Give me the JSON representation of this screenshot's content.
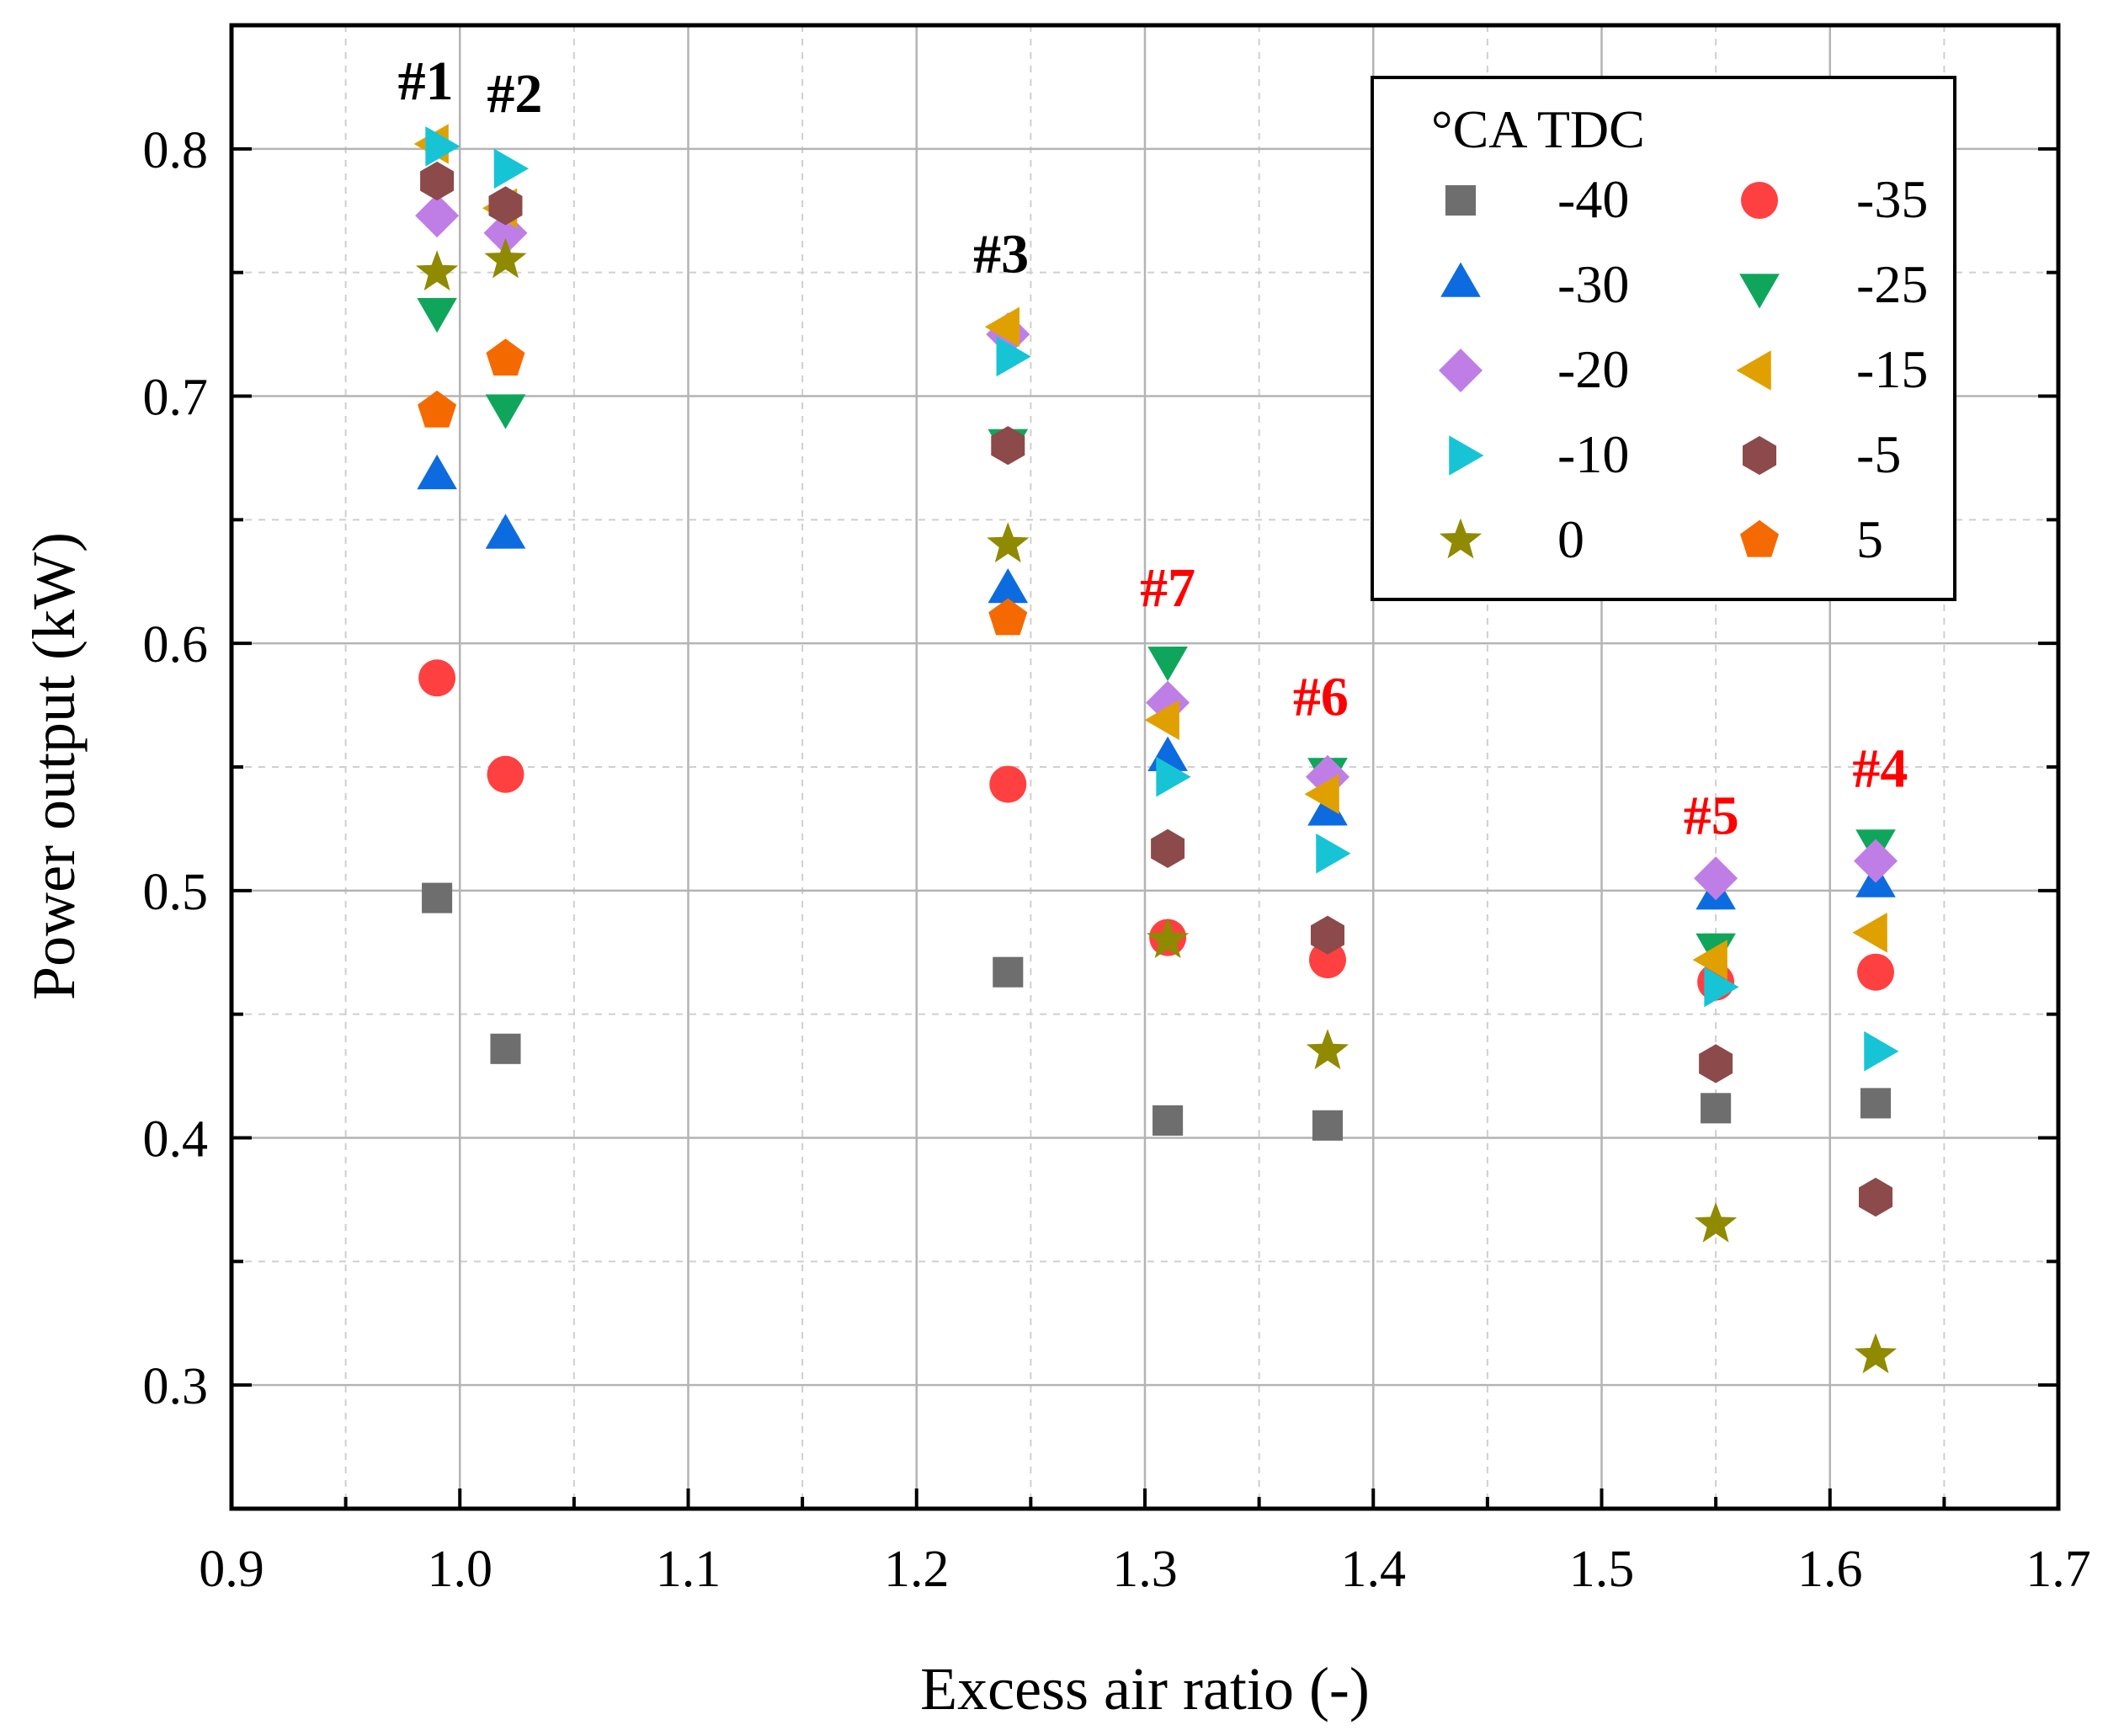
{
  "chart_data": {
    "type": "scatter",
    "title": "",
    "xlabel": "Excess air ratio (-)",
    "ylabel": "Power output (kW)",
    "xlim": [
      0.9,
      1.7
    ],
    "ylim": [
      0.25,
      0.85
    ],
    "xticks": [
      0.9,
      1.0,
      1.1,
      1.2,
      1.3,
      1.4,
      1.5,
      1.6,
      1.7
    ],
    "xtick_labels": [
      "0.9",
      "1.0",
      "1.1",
      "1.2",
      "1.3",
      "1.4",
      "1.5",
      "1.6",
      "1.7"
    ],
    "yticks": [
      0.3,
      0.4,
      0.5,
      0.6,
      0.7,
      0.8
    ],
    "ytick_labels": [
      "0.3",
      "0.4",
      "0.5",
      "0.6",
      "0.7",
      "0.8"
    ],
    "grid": true,
    "legend_title": "°CA TDC",
    "legend_position": "top-right",
    "series": [
      {
        "name": "-40",
        "marker": "square",
        "color": "#6e6e6e",
        "x": [
          0.99,
          1.02,
          1.24,
          1.31,
          1.38,
          1.55,
          1.62
        ],
        "y": [
          0.497,
          0.436,
          0.467,
          0.407,
          0.405,
          0.412,
          0.414
        ]
      },
      {
        "name": "-35",
        "marker": "circle",
        "color": "#ff4040",
        "x": [
          0.99,
          1.02,
          1.24,
          1.31,
          1.38,
          1.55,
          1.62
        ],
        "y": [
          0.586,
          0.547,
          0.543,
          0.481,
          0.472,
          0.463,
          0.467
        ]
      },
      {
        "name": "-30",
        "marker": "triangle-up",
        "color": "#0d6be0",
        "x": [
          0.99,
          1.02,
          1.24,
          1.31,
          1.38,
          1.55,
          1.62
        ],
        "y": [
          0.667,
          0.643,
          0.621,
          0.553,
          0.531,
          0.497,
          0.502
        ]
      },
      {
        "name": "-25",
        "marker": "triangle-down",
        "color": "#0fa65b",
        "x": [
          0.99,
          1.02,
          1.24,
          1.31,
          1.38,
          1.55,
          1.62
        ],
        "y": [
          0.735,
          0.696,
          0.682,
          0.594,
          0.549,
          0.478,
          0.52
        ]
      },
      {
        "name": "-20",
        "marker": "diamond",
        "color": "#bf7ee6",
        "x": [
          0.99,
          1.02,
          1.24,
          1.31,
          1.38,
          1.55,
          1.62
        ],
        "y": [
          0.773,
          0.766,
          0.725,
          0.576,
          0.546,
          0.505,
          0.512
        ]
      },
      {
        "name": "-15",
        "marker": "triangle-left",
        "color": "#e0a000",
        "x": [
          0.99,
          1.02,
          1.24,
          1.31,
          1.38,
          1.55,
          1.62
        ],
        "y": [
          0.802,
          0.776,
          0.728,
          0.569,
          0.539,
          0.472,
          0.483
        ]
      },
      {
        "name": "-10",
        "marker": "triangle-right",
        "color": "#17c4d6",
        "x": [
          0.99,
          1.02,
          1.24,
          1.31,
          1.38,
          1.55,
          1.62
        ],
        "y": [
          0.801,
          0.792,
          0.716,
          0.546,
          0.515,
          0.461,
          0.435
        ]
      },
      {
        "name": "-5",
        "marker": "hexagon",
        "color": "#8c4a4a",
        "x": [
          0.99,
          1.02,
          1.24,
          1.31,
          1.38,
          1.55,
          1.62
        ],
        "y": [
          0.787,
          0.777,
          0.68,
          0.517,
          0.482,
          0.43,
          0.376
        ]
      },
      {
        "name": "0",
        "marker": "star",
        "color": "#8f8a00",
        "x": [
          0.99,
          1.02,
          1.24,
          1.31,
          1.38,
          1.55,
          1.62
        ],
        "y": [
          0.75,
          0.755,
          0.64,
          0.48,
          0.435,
          0.365,
          0.312
        ]
      },
      {
        "name": "5",
        "marker": "pentagon",
        "color": "#f56a00",
        "x": [
          0.99,
          1.02,
          1.24
        ],
        "y": [
          0.694,
          0.715,
          0.61
        ]
      }
    ],
    "annotations": [
      {
        "text": "#1",
        "x": 0.985,
        "y": 0.82,
        "color": "#000000"
      },
      {
        "text": "#2",
        "x": 1.024,
        "y": 0.815,
        "color": "#000000"
      },
      {
        "text": "#3",
        "x": 1.237,
        "y": 0.75,
        "color": "#000000"
      },
      {
        "text": "#7",
        "x": 1.31,
        "y": 0.615,
        "color": "#ff0000"
      },
      {
        "text": "#6",
        "x": 1.377,
        "y": 0.571,
        "color": "#ff0000"
      },
      {
        "text": "#5",
        "x": 1.548,
        "y": 0.523,
        "color": "#ff0000"
      },
      {
        "text": "#4",
        "x": 1.622,
        "y": 0.542,
        "color": "#ff0000"
      }
    ]
  }
}
